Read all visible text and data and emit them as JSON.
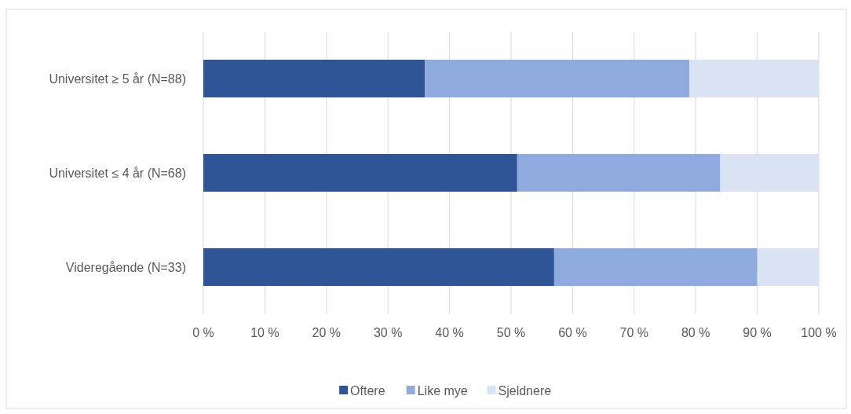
{
  "chart_data": {
    "type": "bar",
    "orientation": "horizontal",
    "stacked": true,
    "categories": [
      "Universitet ≥ 5 år (N=88)",
      "Universitet ≤ 4 år (N=68)",
      "Videregående (N=33)"
    ],
    "series": [
      {
        "name": "Oftere",
        "color": "#2f5597",
        "values": [
          36,
          51,
          57
        ]
      },
      {
        "name": "Like mye",
        "color": "#8faadc",
        "values": [
          43,
          33,
          33
        ]
      },
      {
        "name": "Sjeldnere",
        "color": "#dae3f3",
        "values": [
          21,
          16,
          10
        ]
      }
    ],
    "xlim": [
      0,
      100
    ],
    "xticks": [
      {
        "value": 0,
        "label": "0 %"
      },
      {
        "value": 10,
        "label": "10 %"
      },
      {
        "value": 20,
        "label": "20 %"
      },
      {
        "value": 30,
        "label": "30 %"
      },
      {
        "value": 40,
        "label": "40 %"
      },
      {
        "value": 50,
        "label": "50 %"
      },
      {
        "value": 60,
        "label": "60 %"
      },
      {
        "value": 70,
        "label": "70 %"
      },
      {
        "value": 80,
        "label": "80 %"
      },
      {
        "value": 90,
        "label": "90 %"
      },
      {
        "value": 100,
        "label": "100 %"
      }
    ],
    "grid": "x",
    "legend": "bottom"
  }
}
